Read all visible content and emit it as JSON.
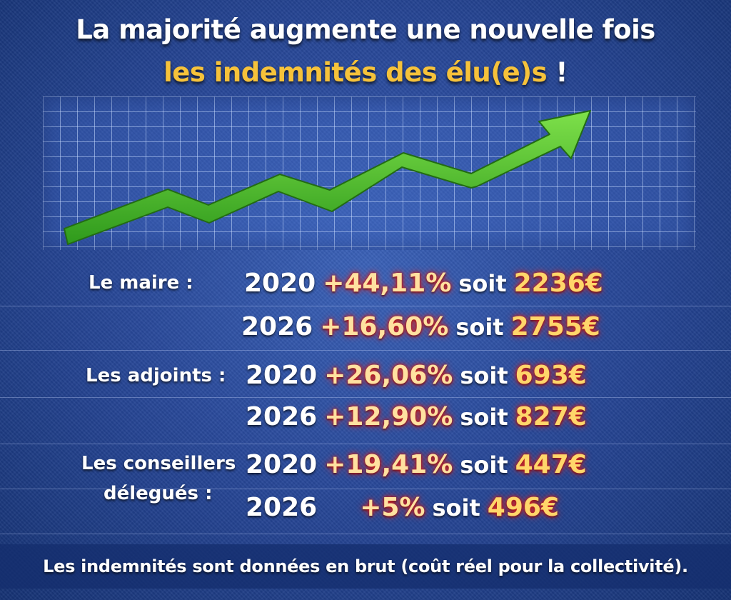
{
  "title": {
    "line1": "La majorité augmente une nouvelle fois",
    "line2": "les indemnités des élu(e)s",
    "exclamation": "!"
  },
  "colors": {
    "title_white": "#ffffff",
    "title_accent": "#f6c23a",
    "arrow_green": "#4cbb2b",
    "value_glow": "#e5211c"
  },
  "groups": [
    {
      "label": [
        "Le maire :"
      ],
      "rows": [
        {
          "year": "2020",
          "percent": "+44,11%",
          "soit": "soit",
          "amount": "2236€"
        },
        {
          "year": "2026",
          "percent": "+16,60%",
          "soit": "soit",
          "amount": "2755€"
        }
      ]
    },
    {
      "label": [
        "Les adjoints :"
      ],
      "rows": [
        {
          "year": "2020",
          "percent": "+26,06%",
          "soit": "soit",
          "amount": "693€"
        },
        {
          "year": "2026",
          "percent": "+12,90%",
          "soit": "soit",
          "amount": "827€"
        }
      ]
    },
    {
      "label": [
        "Les conseillers",
        "délegués :"
      ],
      "rows": [
        {
          "year": "2020",
          "percent": "+19,41%",
          "soit": "soit",
          "amount": "447€"
        },
        {
          "year": "2026",
          "percent": "+5%",
          "soit": "soit",
          "amount": "496€"
        }
      ]
    }
  ],
  "footer": "Les indemnités sont données en brut (coût réel pour la collectivité)."
}
